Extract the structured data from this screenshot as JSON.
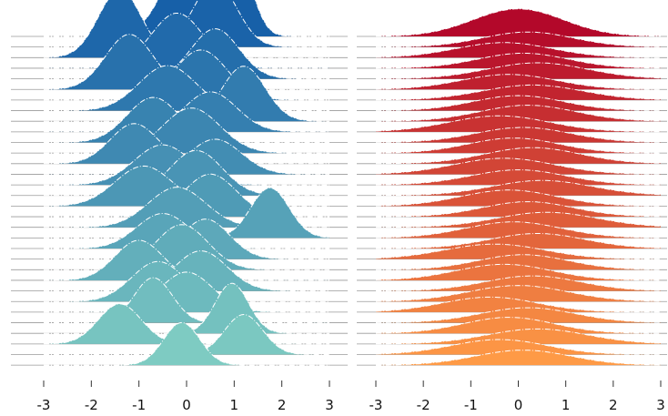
{
  "chart_data": [
    {
      "type": "area",
      "subtype": "ridgeline",
      "x_range": [
        -3,
        3
      ],
      "xticks": [
        -3,
        -2,
        -1,
        0,
        1,
        2,
        3
      ],
      "xtick_labels": [
        "-3",
        "-2",
        "-1",
        "0",
        "1",
        "2",
        "3"
      ],
      "ridge_count": 32,
      "colormap": "blue (top) to teal (bottom)",
      "color_top": "#1760a8",
      "color_bottom": "#7ecbc2",
      "ridges": [
        {
          "modes": [
            [
              0.0,
              0.5,
              1.5
            ],
            [
              1.05,
              0.32,
              1.5
            ]
          ]
        },
        {
          "modes": [
            [
              0.6,
              0.45,
              1.3
            ]
          ]
        },
        {
          "modes": [
            [
              -1.4,
              0.45,
              1.35
            ]
          ]
        },
        {
          "modes": [
            [
              -0.2,
              0.55,
              1.1
            ]
          ]
        },
        {
          "modes": [
            [
              0.6,
              0.5,
              1.0
            ]
          ]
        },
        {
          "modes": [
            [
              -1.2,
              0.5,
              1.1
            ]
          ]
        },
        {
          "modes": [
            [
              0.3,
              0.55,
              1.0
            ]
          ]
        },
        {
          "modes": [
            [
              -0.4,
              0.6,
              0.9
            ]
          ]
        },
        {
          "modes": [
            [
              1.2,
              0.45,
              1.1
            ]
          ]
        },
        {
          "modes": [
            [
              0.5,
              0.55,
              0.8
            ]
          ]
        },
        {
          "modes": [
            [
              -0.7,
              0.55,
              0.9
            ]
          ]
        },
        {
          "modes": [
            [
              0.1,
              0.6,
              0.9
            ]
          ]
        },
        {
          "modes": [
            [
              -1.1,
              0.5,
              0.8
            ]
          ]
        },
        {
          "modes": [
            [
              0.6,
              0.55,
              0.7
            ]
          ]
        },
        {
          "modes": [
            [
              -0.5,
              0.6,
              0.8
            ]
          ]
        },
        {
          "modes": [
            [
              0.2,
              0.55,
              0.9
            ]
          ]
        },
        {
          "modes": [
            [
              -0.9,
              0.6,
              0.8
            ]
          ]
        },
        {
          "modes": [
            [
              0.5,
              0.55,
              0.85
            ]
          ]
        },
        {
          "modes": [
            [
              -0.2,
              0.6,
              0.8
            ]
          ]
        },
        {
          "modes": [
            [
              1.75,
              0.4,
              1.0
            ]
          ]
        },
        {
          "modes": [
            [
              -0.5,
              0.55,
              0.7
            ]
          ]
        },
        {
          "modes": [
            [
              0.4,
              0.5,
              0.8
            ]
          ]
        },
        {
          "modes": [
            [
              -0.1,
              0.55,
              0.9
            ]
          ]
        },
        {
          "modes": [
            [
              -1.0,
              0.5,
              0.8
            ]
          ]
        },
        {
          "modes": [
            [
              0.3,
              0.55,
              0.8
            ]
          ]
        },
        {
          "modes": [
            [
              -0.6,
              0.55,
              0.8
            ]
          ]
        },
        {
          "modes": [
            [
              0.0,
              0.55,
              0.8
            ]
          ]
        },
        {
          "modes": [
            [
              -0.7,
              0.4,
              0.9
            ]
          ]
        },
        {
          "modes": [
            [
              0.95,
              0.35,
              1.0
            ]
          ]
        },
        {
          "modes": [
            [
              -1.4,
              0.45,
              0.8
            ]
          ]
        },
        {
          "modes": [
            [
              1.2,
              0.4,
              0.8
            ]
          ]
        },
        {
          "modes": [
            [
              -0.1,
              0.38,
              0.85
            ]
          ]
        }
      ]
    },
    {
      "type": "area",
      "subtype": "ridgeline",
      "x_range": [
        -3,
        3
      ],
      "xticks": [
        -3,
        -2,
        -1,
        0,
        1,
        2,
        3
      ],
      "xtick_labels": [
        "-3",
        "-2",
        "-1",
        "0",
        "1",
        "2",
        "3"
      ],
      "ridge_count": 32,
      "colormap": "dark red (top) to orange (bottom)",
      "color_top": "#b3082a",
      "color_bottom": "#fe9a46",
      "ridges": [
        {
          "modes": [
            [
              0.0,
              0.95,
              0.55
            ]
          ]
        },
        {
          "modes": [
            [
              0.2,
              0.95,
              0.3
            ]
          ]
        },
        {
          "modes": [
            [
              -0.3,
              1.0,
              0.3
            ]
          ]
        },
        {
          "modes": [
            [
              0.1,
              0.95,
              0.3
            ]
          ]
        },
        {
          "modes": [
            [
              0.4,
              1.05,
              0.32
            ]
          ]
        },
        {
          "modes": [
            [
              -0.2,
              1.0,
              0.3
            ]
          ]
        },
        {
          "modes": [
            [
              0.3,
              1.05,
              0.3
            ]
          ]
        },
        {
          "modes": [
            [
              0.0,
              0.95,
              0.3
            ]
          ]
        },
        {
          "modes": [
            [
              0.2,
              1.0,
              0.32
            ]
          ]
        },
        {
          "modes": [
            [
              -0.4,
              1.05,
              0.32
            ]
          ]
        },
        {
          "modes": [
            [
              0.1,
              1.0,
              0.3
            ]
          ]
        },
        {
          "modes": [
            [
              -0.1,
              0.95,
              0.3
            ]
          ]
        },
        {
          "modes": [
            [
              0.3,
              1.0,
              0.32
            ]
          ]
        },
        {
          "modes": [
            [
              -0.3,
              1.05,
              0.32
            ]
          ]
        },
        {
          "modes": [
            [
              0.0,
              1.0,
              0.3
            ]
          ]
        },
        {
          "modes": [
            [
              0.5,
              1.05,
              0.3
            ]
          ]
        },
        {
          "modes": [
            [
              -0.2,
              1.0,
              0.32
            ]
          ]
        },
        {
          "modes": [
            [
              0.2,
              0.95,
              0.3
            ]
          ]
        },
        {
          "modes": [
            [
              0.6,
              1.05,
              0.3
            ]
          ]
        },
        {
          "modes": [
            [
              -0.1,
              1.0,
              0.32
            ]
          ]
        },
        {
          "modes": [
            [
              0.4,
              1.0,
              0.3
            ]
          ]
        },
        {
          "modes": [
            [
              -0.5,
              1.05,
              0.3
            ]
          ]
        },
        {
          "modes": [
            [
              0.1,
              0.95,
              0.3
            ]
          ]
        },
        {
          "modes": [
            [
              -0.3,
              1.0,
              0.32
            ]
          ]
        },
        {
          "modes": [
            [
              0.3,
              1.0,
              0.3
            ]
          ]
        },
        {
          "modes": [
            [
              0.0,
              1.05,
              0.32
            ]
          ]
        },
        {
          "modes": [
            [
              -0.6,
              1.0,
              0.3
            ]
          ]
        },
        {
          "modes": [
            [
              0.2,
              1.0,
              0.3
            ]
          ]
        },
        {
          "modes": [
            [
              -0.2,
              0.95,
              0.32
            ]
          ]
        },
        {
          "modes": [
            [
              0.4,
              1.05,
              0.3
            ]
          ]
        },
        {
          "modes": [
            [
              -0.4,
              1.0,
              0.3
            ]
          ]
        },
        {
          "modes": [
            [
              0.1,
              1.0,
              0.3
            ]
          ]
        }
      ]
    }
  ]
}
